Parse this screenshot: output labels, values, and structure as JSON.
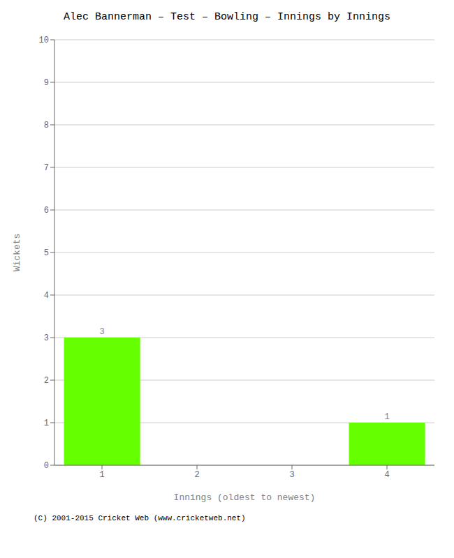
{
  "chart_data": {
    "type": "bar",
    "title": "Alec Bannerman – Test – Bowling – Innings by Innings",
    "categories": [
      "1",
      "2",
      "3",
      "4"
    ],
    "values": [
      3,
      0,
      0,
      1
    ],
    "color": "#66ff00",
    "xlabel": "Innings (oldest to newest)",
    "ylabel": "Wickets",
    "ylim": [
      0,
      10
    ],
    "yticks": [
      0,
      1,
      2,
      3,
      4,
      5,
      6,
      7,
      8,
      9,
      10
    ],
    "grid": true,
    "data_labels": true,
    "footer": "(C) 2001-2015 Cricket Web (www.cricketweb.net)"
  }
}
